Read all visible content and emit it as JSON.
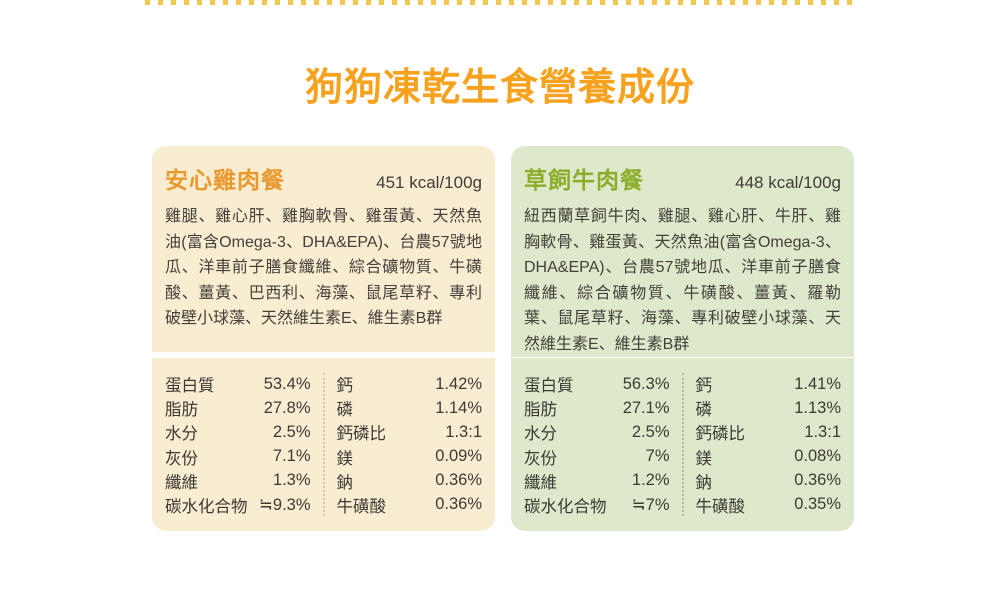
{
  "page_title": "狗狗凍乾生食營養成份",
  "colors": {
    "top_dots": "#F2C64F",
    "page_title": "#F7A21F",
    "chicken_bg": "#F8EDD1",
    "chicken_accent": "#E9992E",
    "beef_bg": "#DEE9CB",
    "beef_accent": "#8CAD2A",
    "body_text": "#43403A"
  },
  "cards": [
    {
      "id": "chicken",
      "title": "安心雞肉餐",
      "kcal": "451 kcal/100g",
      "ingredients": "雞腿、雞心肝、雞胸軟骨、雞蛋黃、天然魚油(富含Omega-3、DHA&EPA)、台農57號地瓜、洋車前子膳食纖維、綜合礦物質、牛磺酸、薑黃、巴西利、海藻、鼠尾草籽、專利破壁小球藻、天然維生素E、維生素B群",
      "nutrition_left": [
        {
          "label": "蛋白質",
          "value": "53.4%"
        },
        {
          "label": "脂肪",
          "value": "27.8%"
        },
        {
          "label": "水分",
          "value": "2.5%"
        },
        {
          "label": "灰份",
          "value": "7.1%"
        },
        {
          "label": "纖維",
          "value": "1.3%"
        },
        {
          "label": "碳水化合物",
          "value": "≒9.3%"
        }
      ],
      "nutrition_right": [
        {
          "label": "鈣",
          "value": "1.42%"
        },
        {
          "label": "磷",
          "value": "1.14%"
        },
        {
          "label": "鈣磷比",
          "value": "1.3:1"
        },
        {
          "label": "鎂",
          "value": "0.09%"
        },
        {
          "label": "鈉",
          "value": "0.36%"
        },
        {
          "label": "牛磺酸",
          "value": "0.36%"
        }
      ]
    },
    {
      "id": "beef",
      "title": "草飼牛肉餐",
      "kcal": "448 kcal/100g",
      "ingredients": "紐西蘭草飼牛肉、雞腿、雞心肝、牛肝、雞胸軟骨、雞蛋黃、天然魚油(富含Omega-3、DHA&EPA)、台農57號地瓜、洋車前子膳食纖維、綜合礦物質、牛磺酸、薑黃、羅勒葉、鼠尾草籽、海藻、專利破壁小球藻、天然維生素E、維生素B群",
      "nutrition_left": [
        {
          "label": "蛋白質",
          "value": "56.3%"
        },
        {
          "label": "脂肪",
          "value": "27.1%"
        },
        {
          "label": "水分",
          "value": "2.5%"
        },
        {
          "label": "灰份",
          "value": "7%"
        },
        {
          "label": "纖維",
          "value": "1.2%"
        },
        {
          "label": "碳水化合物",
          "value": "≒7%"
        }
      ],
      "nutrition_right": [
        {
          "label": "鈣",
          "value": "1.41%"
        },
        {
          "label": "磷",
          "value": "1.13%"
        },
        {
          "label": "鈣磷比",
          "value": "1.3:1"
        },
        {
          "label": "鎂",
          "value": "0.08%"
        },
        {
          "label": "鈉",
          "value": "0.36%"
        },
        {
          "label": "牛磺酸",
          "value": "0.35%"
        }
      ]
    }
  ]
}
